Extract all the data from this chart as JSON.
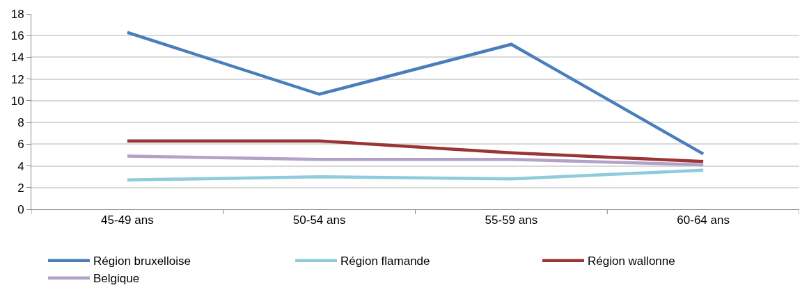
{
  "chart_data": {
    "type": "line",
    "categories": [
      "45-49 ans",
      "50-54 ans",
      "55-59 ans",
      "60-64 ans"
    ],
    "series": [
      {
        "name": "Région bruxelloise",
        "color": "#4a7ebb",
        "values": [
          16.3,
          10.6,
          15.2,
          5.1
        ]
      },
      {
        "name": "Région flamande",
        "color": "#8fcbdb",
        "values": [
          2.7,
          3.0,
          2.8,
          3.6
        ]
      },
      {
        "name": "Région wallonne",
        "color": "#9b3434",
        "values": [
          6.3,
          6.3,
          5.2,
          4.4
        ]
      },
      {
        "name": "Belgique",
        "color": "#b3a2c7",
        "values": [
          4.9,
          4.6,
          4.6,
          4.1
        ]
      }
    ],
    "ylim": [
      0,
      18
    ],
    "yticks": [
      0,
      2,
      4,
      6,
      8,
      10,
      12,
      14,
      16,
      18
    ],
    "grid": "y",
    "legend": "bottom",
    "marker": "none",
    "line_style": "solid"
  }
}
